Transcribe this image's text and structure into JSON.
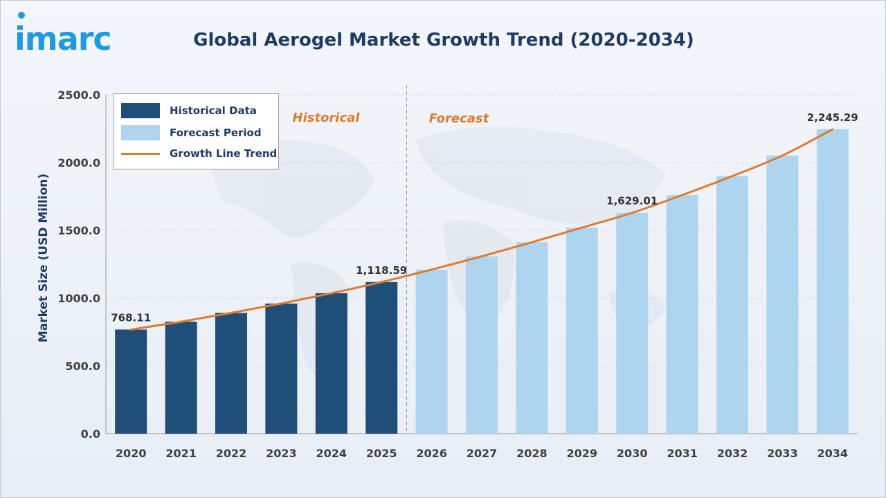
{
  "header": {
    "logo_text": "imarc",
    "title": "Global Aerogel Market Growth Trend (2020-2034)"
  },
  "colors": {
    "historical": "#1f4e79",
    "forecast": "#aed4ef",
    "trend": "#e07b2e",
    "logo": "#1f9ae0",
    "title": "#1f3b64"
  },
  "legend": {
    "items": [
      {
        "label": "Historical Data",
        "kind": "bar-historical"
      },
      {
        "label": "Forecast Period",
        "kind": "bar-forecast"
      },
      {
        "label": "Growth Line Trend",
        "kind": "line-trend"
      }
    ]
  },
  "chart_data": {
    "type": "bar",
    "ylabel": "Market Size (USD Million)",
    "xlabel": "",
    "ylim": [
      0,
      2500
    ],
    "yticks": [
      "0.0",
      "500.0",
      "1000.0",
      "1500.0",
      "2000.0",
      "2500.0"
    ],
    "categories": [
      "2020",
      "2021",
      "2022",
      "2023",
      "2024",
      "2025",
      "2026",
      "2027",
      "2028",
      "2029",
      "2030",
      "2031",
      "2032",
      "2033",
      "2034"
    ],
    "series": [
      {
        "name": "Historical Data",
        "values": [
          768.11,
          826,
          891,
          960,
          1036,
          1118.59,
          null,
          null,
          null,
          null,
          null,
          null,
          null,
          null,
          null
        ]
      },
      {
        "name": "Forecast Period",
        "values": [
          null,
          null,
          null,
          null,
          null,
          null,
          1210,
          1308,
          1412,
          1520,
          1629.01,
          1760,
          1900,
          2052,
          2245.29
        ]
      },
      {
        "name": "Growth Line Trend",
        "type": "line",
        "values": [
          768.11,
          826,
          891,
          960,
          1036,
          1118.59,
          1210,
          1308,
          1412,
          1520,
          1629.01,
          1760,
          1900,
          2052,
          2245.29
        ]
      }
    ],
    "data_labels": [
      {
        "index": 0,
        "text": "768.11"
      },
      {
        "index": 5,
        "text": "1,118.59"
      },
      {
        "index": 10,
        "text": "1,629.01"
      },
      {
        "index": 14,
        "text": "2,245.29"
      }
    ],
    "regions": {
      "historical": "Historical",
      "forecast": "Forecast"
    },
    "divider_after_index": 5,
    "grid": true,
    "legend_position": "top-left"
  }
}
